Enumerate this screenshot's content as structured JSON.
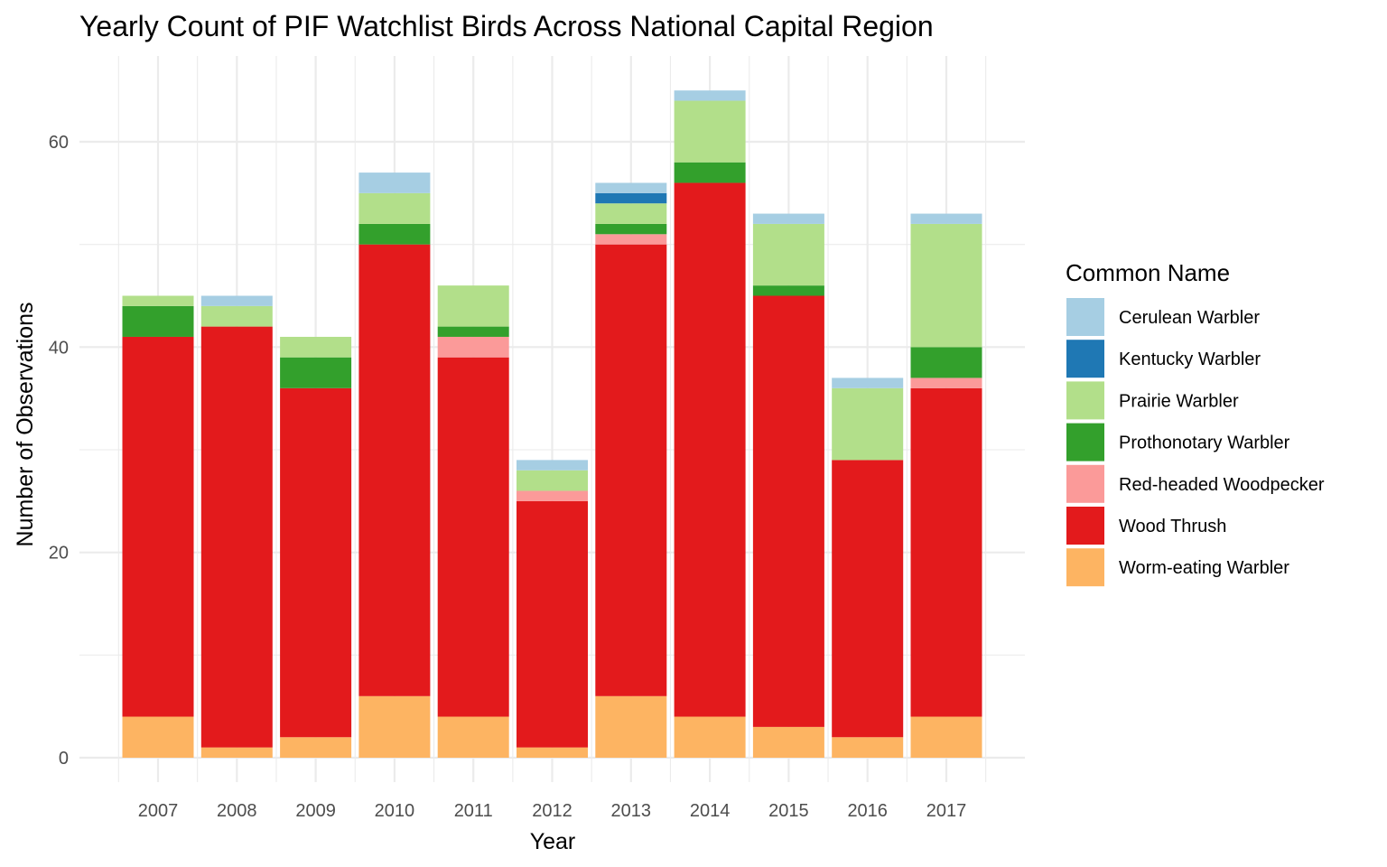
{
  "chart_data": {
    "type": "bar",
    "stacked": true,
    "title": "Yearly Count of PIF Watchlist Birds Across National Capital Region",
    "xlabel": "Year",
    "ylabel": "Number of Observations",
    "ylim": [
      0,
      67
    ],
    "y_ticks": [
      0,
      20,
      40,
      60
    ],
    "grid": true,
    "legend_title": "Common Name",
    "legend_position": "right",
    "categories": [
      "2007",
      "2008",
      "2009",
      "2010",
      "2011",
      "2012",
      "2013",
      "2014",
      "2015",
      "2016",
      "2017"
    ],
    "series": [
      {
        "name": "Worm-eating Warbler",
        "color": "#FDB462",
        "values": [
          4,
          1,
          2,
          6,
          4,
          1,
          6,
          4,
          3,
          2,
          4
        ]
      },
      {
        "name": "Wood Thrush",
        "color": "#E31A1C",
        "values": [
          37,
          41,
          34,
          44,
          35,
          24,
          44,
          52,
          42,
          27,
          32
        ]
      },
      {
        "name": "Red-headed Woodpecker",
        "color": "#FB9A99",
        "values": [
          0,
          0,
          0,
          0,
          2,
          1,
          1,
          0,
          0,
          0,
          1
        ]
      },
      {
        "name": "Prothonotary Warbler",
        "color": "#33A02C",
        "values": [
          3,
          0,
          3,
          2,
          1,
          0,
          1,
          2,
          1,
          0,
          3
        ]
      },
      {
        "name": "Prairie Warbler",
        "color": "#B2DF8A",
        "values": [
          1,
          2,
          2,
          3,
          4,
          2,
          2,
          6,
          6,
          7,
          12
        ]
      },
      {
        "name": "Kentucky Warbler",
        "color": "#1F78B4",
        "values": [
          0,
          0,
          0,
          0,
          0,
          0,
          1,
          0,
          0,
          0,
          0
        ]
      },
      {
        "name": "Cerulean Warbler",
        "color": "#A6CEE3",
        "values": [
          0,
          1,
          0,
          2,
          0,
          1,
          1,
          1,
          1,
          1,
          1
        ]
      }
    ],
    "legend_order": [
      "Cerulean Warbler",
      "Kentucky Warbler",
      "Prairie Warbler",
      "Prothonotary Warbler",
      "Red-headed Woodpecker",
      "Wood Thrush",
      "Worm-eating Warbler"
    ]
  }
}
